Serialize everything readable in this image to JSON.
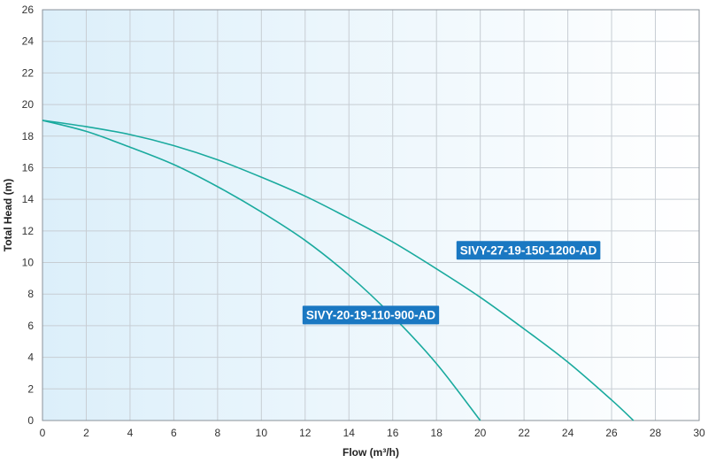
{
  "chart_data": {
    "type": "line",
    "xlabel": "Flow (m³/h)",
    "ylabel": "Total Head (m)",
    "xlim": [
      0,
      30
    ],
    "ylim": [
      0,
      26
    ],
    "xticks": [
      0,
      2,
      4,
      6,
      8,
      10,
      12,
      14,
      16,
      18,
      20,
      22,
      24,
      26,
      28,
      30
    ],
    "yticks": [
      0,
      2,
      4,
      6,
      8,
      10,
      12,
      14,
      16,
      18,
      20,
      22,
      24,
      26
    ],
    "grid": true,
    "series": [
      {
        "name": "SIVY-20-19-110-900-AD",
        "x": [
          0,
          2,
          4,
          6,
          8,
          10,
          12,
          14,
          16,
          18,
          20
        ],
        "y": [
          19.0,
          18.3,
          17.3,
          16.2,
          14.8,
          13.2,
          11.4,
          9.2,
          6.6,
          3.6,
          0
        ]
      },
      {
        "name": "SIVY-27-19-150-1200-AD",
        "x": [
          0,
          2,
          4,
          6,
          8,
          10,
          12,
          14,
          16,
          18,
          20,
          22,
          24,
          26,
          27
        ],
        "y": [
          19.0,
          18.6,
          18.1,
          17.4,
          16.5,
          15.4,
          14.2,
          12.8,
          11.3,
          9.6,
          7.8,
          5.8,
          3.7,
          1.3,
          0
        ]
      }
    ]
  },
  "colors": {
    "curve": "#1aaa9e",
    "label_bg": "#1a78c2",
    "grid": "#c7cdd3",
    "bg_left": "#dceffa",
    "bg_right": "#ffffff"
  }
}
